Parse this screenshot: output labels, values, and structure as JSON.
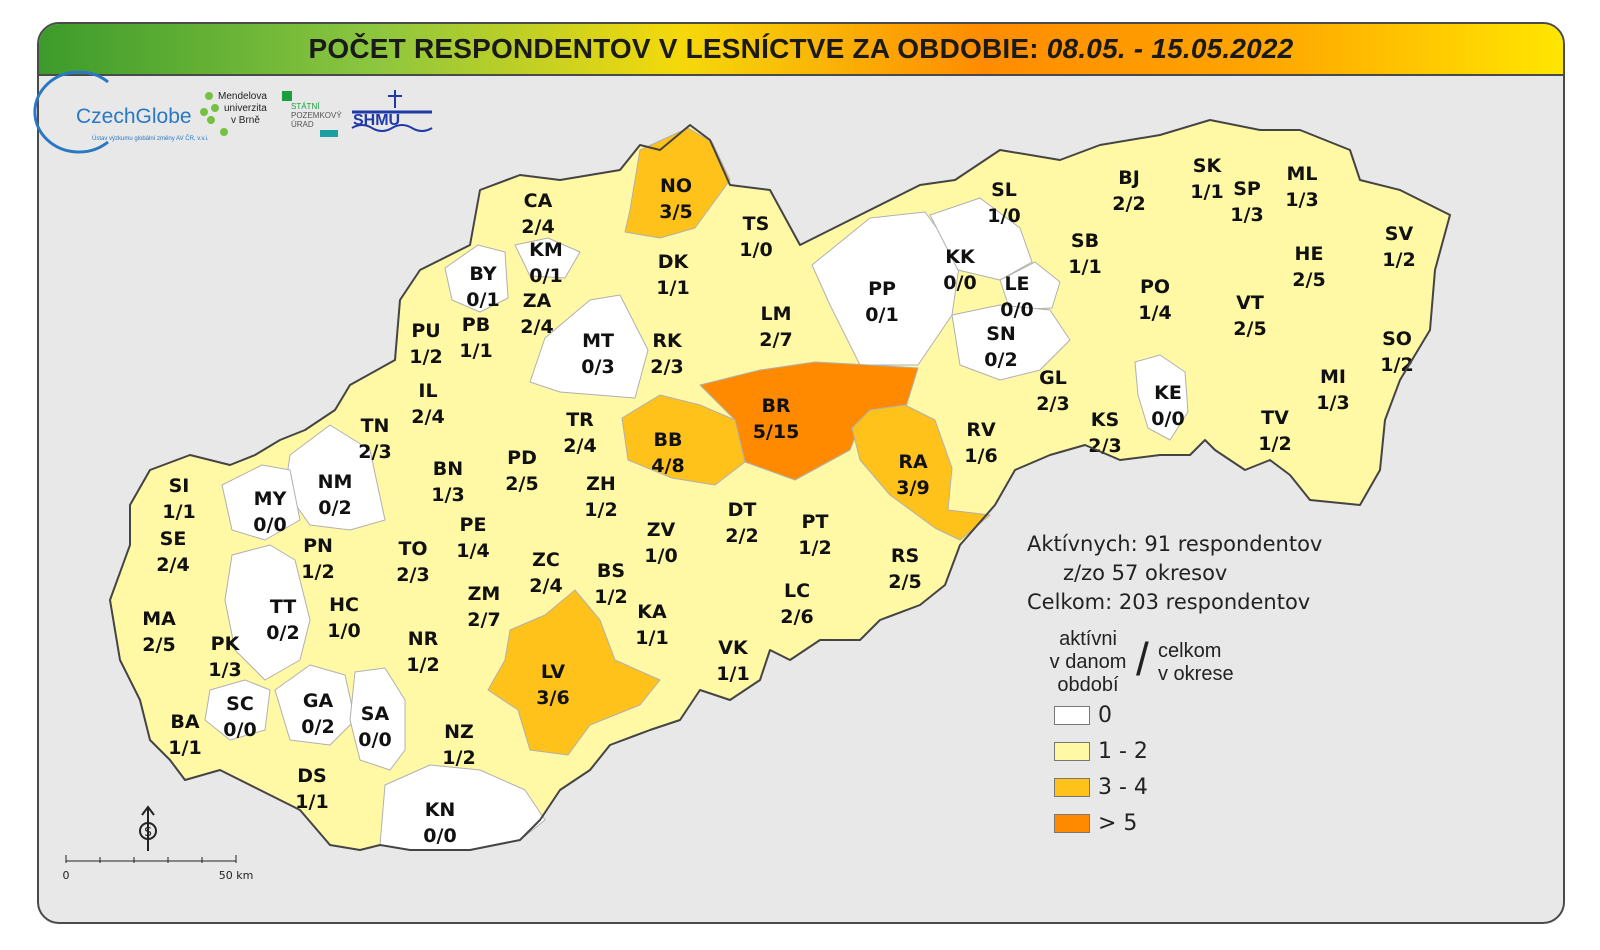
{
  "title": {
    "main": "POČET RESPONDENTOV V LESNÍCTVE ZA OBDOBIE:",
    "dates": "08.05. - 15.05.2022"
  },
  "logos": {
    "czechglobe": "CzechGlobe",
    "czechglobe_sub": "Ústav výzkumu globální změny AV ČR, v.v.i.",
    "mendelu": [
      "Mendelova",
      "univerzita",
      "v Brně"
    ],
    "spu": [
      "STÁTNÍ",
      "POZEMKOVÝ",
      "ÚRAD"
    ],
    "shmu": "SHMU"
  },
  "colors": {
    "zero": "#ffffff",
    "low": "#fff9a6",
    "mid": "#ffc21a",
    "high": "#ff8a00",
    "outline": "#444444",
    "background": "#e8e8e8"
  },
  "districts": [
    {
      "code": "NO",
      "value": "3/5",
      "cat": "mid"
    },
    {
      "code": "CA",
      "value": "2/4",
      "cat": "low"
    },
    {
      "code": "KM",
      "value": "0/1",
      "cat": "zero"
    },
    {
      "code": "TS",
      "value": "1/0",
      "cat": "low"
    },
    {
      "code": "DK",
      "value": "1/1",
      "cat": "low"
    },
    {
      "code": "BY",
      "value": "0/1",
      "cat": "zero"
    },
    {
      "code": "ZA",
      "value": "2/4",
      "cat": "low"
    },
    {
      "code": "PU",
      "value": "1/2",
      "cat": "low"
    },
    {
      "code": "PB",
      "value": "1/1",
      "cat": "low"
    },
    {
      "code": "MT",
      "value": "0/3",
      "cat": "zero"
    },
    {
      "code": "RK",
      "value": "2/3",
      "cat": "low"
    },
    {
      "code": "LM",
      "value": "2/7",
      "cat": "low"
    },
    {
      "code": "PP",
      "value": "0/1",
      "cat": "zero"
    },
    {
      "code": "KK",
      "value": "0/0",
      "cat": "zero"
    },
    {
      "code": "SL",
      "value": "1/0",
      "cat": "low"
    },
    {
      "code": "BJ",
      "value": "2/2",
      "cat": "low"
    },
    {
      "code": "SK",
      "value": "1/1",
      "cat": "low"
    },
    {
      "code": "SP",
      "value": "1/3",
      "cat": "low"
    },
    {
      "code": "ML",
      "value": "1/3",
      "cat": "low"
    },
    {
      "code": "SB",
      "value": "1/1",
      "cat": "low"
    },
    {
      "code": "LE",
      "value": "0/0",
      "cat": "zero"
    },
    {
      "code": "SN",
      "value": "0/2",
      "cat": "zero"
    },
    {
      "code": "PO",
      "value": "1/4",
      "cat": "low"
    },
    {
      "code": "HE",
      "value": "2/5",
      "cat": "low"
    },
    {
      "code": "SV",
      "value": "1/2",
      "cat": "low"
    },
    {
      "code": "VT",
      "value": "2/5",
      "cat": "low"
    },
    {
      "code": "SO",
      "value": "1/2",
      "cat": "low"
    },
    {
      "code": "IL",
      "value": "2/4",
      "cat": "low"
    },
    {
      "code": "TN",
      "value": "2/3",
      "cat": "low"
    },
    {
      "code": "BR",
      "value": "5/15",
      "cat": "high"
    },
    {
      "code": "BB",
      "value": "4/8",
      "cat": "mid"
    },
    {
      "code": "TR",
      "value": "2/4",
      "cat": "low"
    },
    {
      "code": "GL",
      "value": "2/3",
      "cat": "low"
    },
    {
      "code": "KE",
      "value": "0/0",
      "cat": "zero"
    },
    {
      "code": "MI",
      "value": "1/3",
      "cat": "low"
    },
    {
      "code": "RV",
      "value": "1/6",
      "cat": "low"
    },
    {
      "code": "KS",
      "value": "2/3",
      "cat": "low"
    },
    {
      "code": "TV",
      "value": "1/2",
      "cat": "low"
    },
    {
      "code": "RA",
      "value": "3/9",
      "cat": "mid"
    },
    {
      "code": "SI",
      "value": "1/1",
      "cat": "low"
    },
    {
      "code": "NM",
      "value": "0/2",
      "cat": "zero"
    },
    {
      "code": "BN",
      "value": "1/3",
      "cat": "low"
    },
    {
      "code": "PD",
      "value": "2/5",
      "cat": "low"
    },
    {
      "code": "ZH",
      "value": "1/2",
      "cat": "low"
    },
    {
      "code": "MY",
      "value": "0/0",
      "cat": "zero"
    },
    {
      "code": "SE",
      "value": "2/4",
      "cat": "low"
    },
    {
      "code": "PN",
      "value": "1/2",
      "cat": "low"
    },
    {
      "code": "TO",
      "value": "2/3",
      "cat": "low"
    },
    {
      "code": "PE",
      "value": "1/4",
      "cat": "low"
    },
    {
      "code": "ZV",
      "value": "1/0",
      "cat": "low"
    },
    {
      "code": "DT",
      "value": "2/2",
      "cat": "low"
    },
    {
      "code": "PT",
      "value": "1/2",
      "cat": "low"
    },
    {
      "code": "RS",
      "value": "2/5",
      "cat": "low"
    },
    {
      "code": "ZC",
      "value": "2/4",
      "cat": "low"
    },
    {
      "code": "BS",
      "value": "1/2",
      "cat": "low"
    },
    {
      "code": "MA",
      "value": "2/5",
      "cat": "low"
    },
    {
      "code": "TT",
      "value": "0/2",
      "cat": "zero"
    },
    {
      "code": "HC",
      "value": "1/0",
      "cat": "low"
    },
    {
      "code": "ZM",
      "value": "2/7",
      "cat": "low"
    },
    {
      "code": "KA",
      "value": "1/1",
      "cat": "low"
    },
    {
      "code": "LC",
      "value": "2/6",
      "cat": "low"
    },
    {
      "code": "NR",
      "value": "1/2",
      "cat": "low"
    },
    {
      "code": "LV",
      "value": "3/6",
      "cat": "mid"
    },
    {
      "code": "VK",
      "value": "1/1",
      "cat": "low"
    },
    {
      "code": "PK",
      "value": "1/3",
      "cat": "low"
    },
    {
      "code": "SC",
      "value": "0/0",
      "cat": "zero"
    },
    {
      "code": "GA",
      "value": "0/2",
      "cat": "zero"
    },
    {
      "code": "SA",
      "value": "0/0",
      "cat": "zero"
    },
    {
      "code": "BA",
      "value": "1/1",
      "cat": "low"
    },
    {
      "code": "NZ",
      "value": "1/2",
      "cat": "low"
    },
    {
      "code": "DS",
      "value": "1/1",
      "cat": "low"
    },
    {
      "code": "KN",
      "value": "0/0",
      "cat": "zero"
    }
  ],
  "summary": {
    "active": "Aktívnych: 91 respondentov",
    "districts": "z/zo 57 okresov",
    "total": "Celkom: 203 respondentov"
  },
  "legend": {
    "left_lines": [
      "aktívni",
      "v danom",
      "období"
    ],
    "slash": "/",
    "right_lines": [
      "celkom",
      "v okrese"
    ],
    "items": [
      {
        "label": "0",
        "cat": "zero"
      },
      {
        "label": "1 - 2",
        "cat": "low"
      },
      {
        "label": "3 - 4",
        "cat": "mid"
      },
      {
        "label": "> 5",
        "cat": "high"
      }
    ]
  },
  "scale": {
    "start": "0",
    "end": "50 km"
  }
}
